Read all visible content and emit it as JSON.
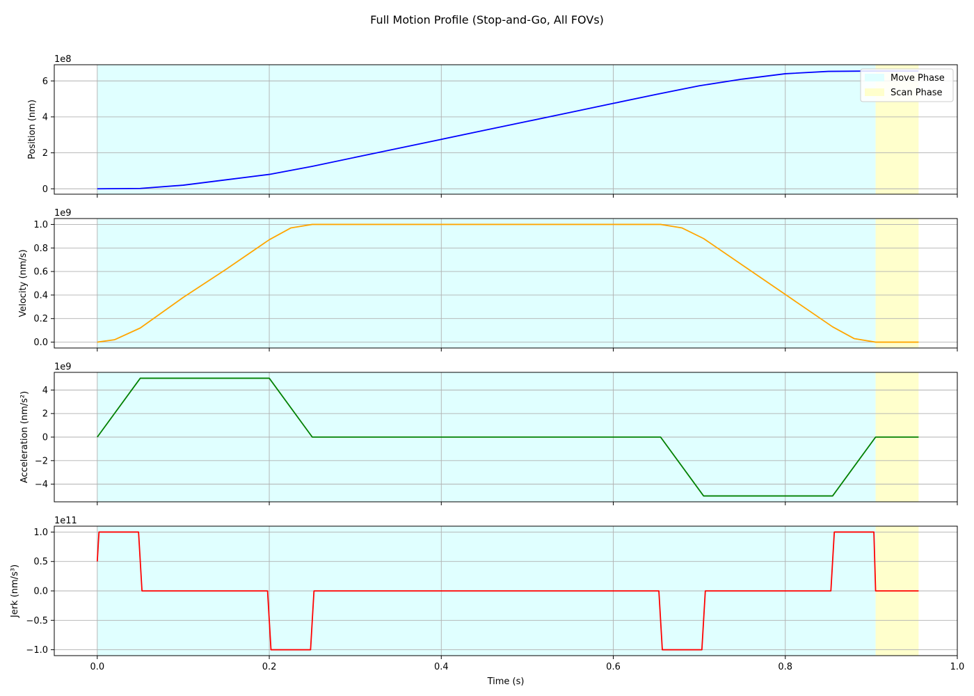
{
  "figure": {
    "title": "Full Motion Profile (Stop-and-Go, All FOVs)",
    "xlabel": "Time (s)",
    "xlim": [
      -0.05,
      1.0
    ],
    "xticks": [
      0.0,
      0.2,
      0.4,
      0.6,
      0.8,
      1.0
    ],
    "xtick_labels": [
      "0.0",
      "0.2",
      "0.4",
      "0.6",
      "0.8",
      "1.0"
    ],
    "grid": true,
    "legend": {
      "placement": "upper right of first panel",
      "entries": [
        {
          "label": "Move Phase",
          "color": "#e0ffff"
        },
        {
          "label": "Scan Phase",
          "color": "#ffffcc"
        }
      ]
    },
    "colors": {
      "move_phase": "#e0ffff",
      "scan_phase": "#ffffcc",
      "grid": "#b0b0b0"
    }
  },
  "chart_data": [
    {
      "type": "line",
      "ylabel": "Position (nm)",
      "offset_label": "1e8",
      "ylim": [
        -0.3,
        6.9
      ],
      "yticks": [
        0,
        2,
        4,
        6
      ],
      "ytick_labels": [
        "0",
        "2",
        "4",
        "6"
      ],
      "phases": [
        {
          "label": "Move Phase",
          "x": [
            0.0,
            0.905
          ]
        },
        {
          "label": "Scan Phase",
          "x": [
            0.905,
            0.955
          ]
        }
      ],
      "series": [
        {
          "color": "#0000ff",
          "x": [
            0.0,
            0.05,
            0.1,
            0.15,
            0.2,
            0.25,
            0.3,
            0.35,
            0.4,
            0.45,
            0.5,
            0.55,
            0.6,
            0.65,
            0.7,
            0.75,
            0.8,
            0.85,
            0.9,
            0.955
          ],
          "y": [
            0.0,
            0.02,
            0.2,
            0.5,
            0.8,
            1.25,
            1.75,
            2.25,
            2.75,
            3.25,
            3.75,
            4.25,
            4.75,
            5.25,
            5.73,
            6.1,
            6.4,
            6.53,
            6.55,
            6.55
          ]
        }
      ]
    },
    {
      "type": "line",
      "ylabel": "Velocity (nm/s)",
      "offset_label": "1e9",
      "ylim": [
        -0.05,
        1.05
      ],
      "yticks": [
        0.0,
        0.2,
        0.4,
        0.6,
        0.8,
        1.0
      ],
      "ytick_labels": [
        "0.0",
        "0.2",
        "0.4",
        "0.6",
        "0.8",
        "1.0"
      ],
      "phases": [
        {
          "label": "Move Phase",
          "x": [
            0.0,
            0.905
          ]
        },
        {
          "label": "Scan Phase",
          "x": [
            0.905,
            0.955
          ]
        }
      ],
      "series": [
        {
          "color": "#ffa500",
          "x": [
            0.0,
            0.02,
            0.05,
            0.1,
            0.15,
            0.2,
            0.225,
            0.25,
            0.3,
            0.4,
            0.5,
            0.6,
            0.655,
            0.68,
            0.705,
            0.755,
            0.805,
            0.855,
            0.88,
            0.905,
            0.955
          ],
          "y": [
            0.0,
            0.02,
            0.12,
            0.38,
            0.62,
            0.87,
            0.97,
            1.0,
            1.0,
            1.0,
            1.0,
            1.0,
            1.0,
            0.97,
            0.88,
            0.63,
            0.38,
            0.13,
            0.03,
            0.0,
            0.0
          ]
        }
      ]
    },
    {
      "type": "line",
      "ylabel": "Acceleration (nm/s²)",
      "offset_label": "1e9",
      "ylim": [
        -5.5,
        5.5
      ],
      "yticks": [
        -4,
        -2,
        0,
        2,
        4
      ],
      "ytick_labels": [
        "−4",
        "−2",
        "0",
        "2",
        "4"
      ],
      "phases": [
        {
          "label": "Move Phase",
          "x": [
            0.0,
            0.905
          ]
        },
        {
          "label": "Scan Phase",
          "x": [
            0.905,
            0.955
          ]
        }
      ],
      "series": [
        {
          "color": "#008000",
          "x": [
            0.0,
            0.05,
            0.2,
            0.25,
            0.655,
            0.705,
            0.855,
            0.905,
            0.955
          ],
          "y": [
            0,
            5,
            5,
            0,
            0,
            -5,
            -5,
            0,
            0
          ]
        }
      ]
    },
    {
      "type": "line",
      "ylabel": "Jerk (nm/s³)",
      "offset_label": "1e11",
      "ylim": [
        -1.1,
        1.1
      ],
      "yticks": [
        -1.0,
        -0.5,
        0.0,
        0.5,
        1.0
      ],
      "ytick_labels": [
        "−1.0",
        "−0.5",
        "0.0",
        "0.5",
        "1.0"
      ],
      "phases": [
        {
          "label": "Move Phase",
          "x": [
            0.0,
            0.905
          ]
        },
        {
          "label": "Scan Phase",
          "x": [
            0.905,
            0.955
          ]
        }
      ],
      "series": [
        {
          "color": "#ff0000",
          "x": [
            0.0,
            0.002,
            0.048,
            0.052,
            0.198,
            0.202,
            0.248,
            0.252,
            0.653,
            0.657,
            0.703,
            0.707,
            0.853,
            0.857,
            0.903,
            0.905,
            0.955
          ],
          "y": [
            0.5,
            1.0,
            1.0,
            0.0,
            0.0,
            -1.0,
            -1.0,
            0.0,
            0.0,
            -1.0,
            -1.0,
            0.0,
            0.0,
            1.0,
            1.0,
            0.0,
            0.0
          ]
        }
      ]
    }
  ]
}
